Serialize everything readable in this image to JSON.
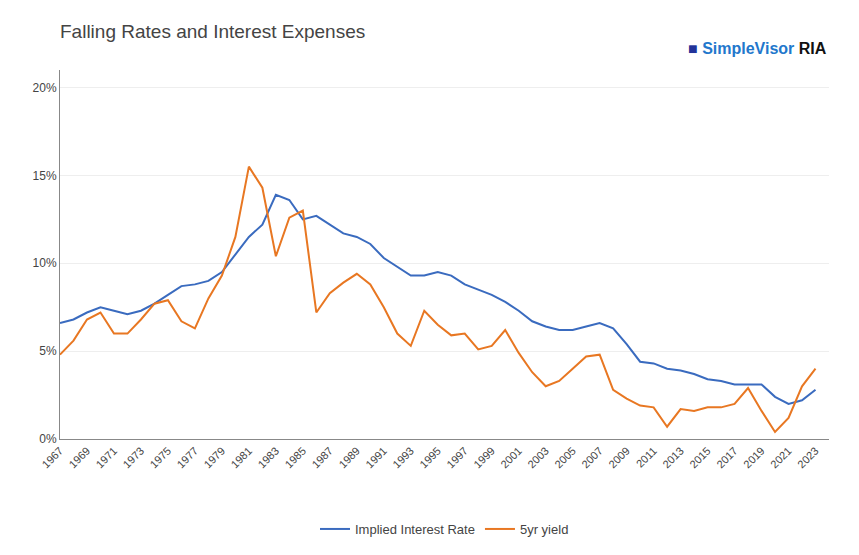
{
  "chart_data": {
    "type": "line",
    "title": "Falling Rates and Interest Expenses",
    "annotations": [
      {
        "text": "■",
        "color": "#223399"
      },
      {
        "text": "SimpleVisor",
        "color": "#2277cc"
      },
      {
        "text": "RIA",
        "color": "#111111"
      }
    ],
    "x": [
      1967,
      1968,
      1969,
      1970,
      1971,
      1972,
      1973,
      1974,
      1975,
      1976,
      1977,
      1978,
      1979,
      1980,
      1981,
      1982,
      1983,
      1984,
      1985,
      1986,
      1987,
      1988,
      1989,
      1990,
      1991,
      1992,
      1993,
      1994,
      1995,
      1996,
      1997,
      1998,
      1999,
      2000,
      2001,
      2002,
      2003,
      2004,
      2005,
      2006,
      2007,
      2008,
      2009,
      2010,
      2011,
      2012,
      2013,
      2014,
      2015,
      2016,
      2017,
      2018,
      2019,
      2020,
      2021,
      2022,
      2023
    ],
    "series": [
      {
        "name": "Implied Interest Rate",
        "color": "#3a6bbf",
        "values": [
          0.066,
          0.068,
          0.072,
          0.075,
          0.073,
          0.071,
          0.073,
          0.077,
          0.082,
          0.087,
          0.088,
          0.09,
          0.095,
          0.105,
          0.115,
          0.122,
          0.139,
          0.136,
          0.125,
          0.127,
          0.122,
          0.117,
          0.115,
          0.111,
          0.103,
          0.098,
          0.093,
          0.093,
          0.095,
          0.093,
          0.088,
          0.085,
          0.082,
          0.078,
          0.073,
          0.067,
          0.064,
          0.062,
          0.062,
          0.064,
          0.066,
          0.063,
          0.054,
          0.044,
          0.043,
          0.04,
          0.039,
          0.037,
          0.034,
          0.033,
          0.031,
          0.031,
          0.031,
          0.024,
          0.02,
          0.022,
          0.028
        ]
      },
      {
        "name": "5yr yield",
        "color": "#e87722",
        "values": [
          0.048,
          0.056,
          0.068,
          0.072,
          0.06,
          0.06,
          0.068,
          0.077,
          0.079,
          0.067,
          0.063,
          0.08,
          0.093,
          0.115,
          0.155,
          0.143,
          0.104,
          0.126,
          0.13,
          0.072,
          0.083,
          0.089,
          0.094,
          0.088,
          0.075,
          0.06,
          0.053,
          0.073,
          0.065,
          0.059,
          0.06,
          0.051,
          0.053,
          0.062,
          0.049,
          0.038,
          0.03,
          0.033,
          0.04,
          0.047,
          0.048,
          0.028,
          0.023,
          0.019,
          0.018,
          0.007,
          0.017,
          0.016,
          0.018,
          0.018,
          0.02,
          0.029,
          0.016,
          0.004,
          0.012,
          0.03,
          0.04
        ]
      }
    ],
    "xlim": [
      1967,
      2024
    ],
    "xticks": [
      1967,
      1969,
      1971,
      1973,
      1975,
      1977,
      1979,
      1981,
      1983,
      1985,
      1987,
      1989,
      1991,
      1993,
      1995,
      1997,
      1999,
      2001,
      2003,
      2005,
      2007,
      2009,
      2011,
      2013,
      2015,
      2017,
      2019,
      2021,
      2023
    ],
    "ylim": [
      0,
      0.21
    ],
    "yticks": [
      {
        "value": 0.0,
        "label": "0%"
      },
      {
        "value": 0.05,
        "label": "5%"
      },
      {
        "value": 0.1,
        "label": "10%"
      },
      {
        "value": 0.15,
        "label": "15%"
      },
      {
        "value": 0.2,
        "label": "20%"
      }
    ],
    "grid": "y",
    "legend": "bottom"
  }
}
